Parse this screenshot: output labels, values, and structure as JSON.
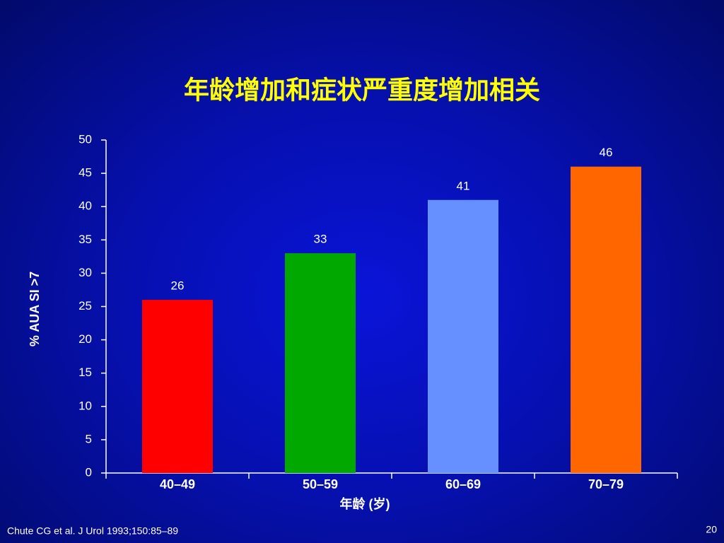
{
  "chart_data": {
    "type": "bar",
    "title": "年龄增加和症状严重度增加相关",
    "categories": [
      "40–49",
      "50–59",
      "60–69",
      "70–79"
    ],
    "values": [
      26,
      33,
      41,
      46
    ],
    "colors": [
      "#ff0000",
      "#00a800",
      "#6690ff",
      "#ff6600"
    ],
    "ylim": [
      0,
      50
    ],
    "yticks": [
      0,
      5,
      10,
      15,
      20,
      25,
      30,
      35,
      40,
      45,
      50
    ],
    "y_label": "% AUA SI >7",
    "x_label": "年龄 (岁)",
    "grid": false
  },
  "footnote": "Chute CG et al. J Urol 1993;150:85–89",
  "page_number": "20"
}
